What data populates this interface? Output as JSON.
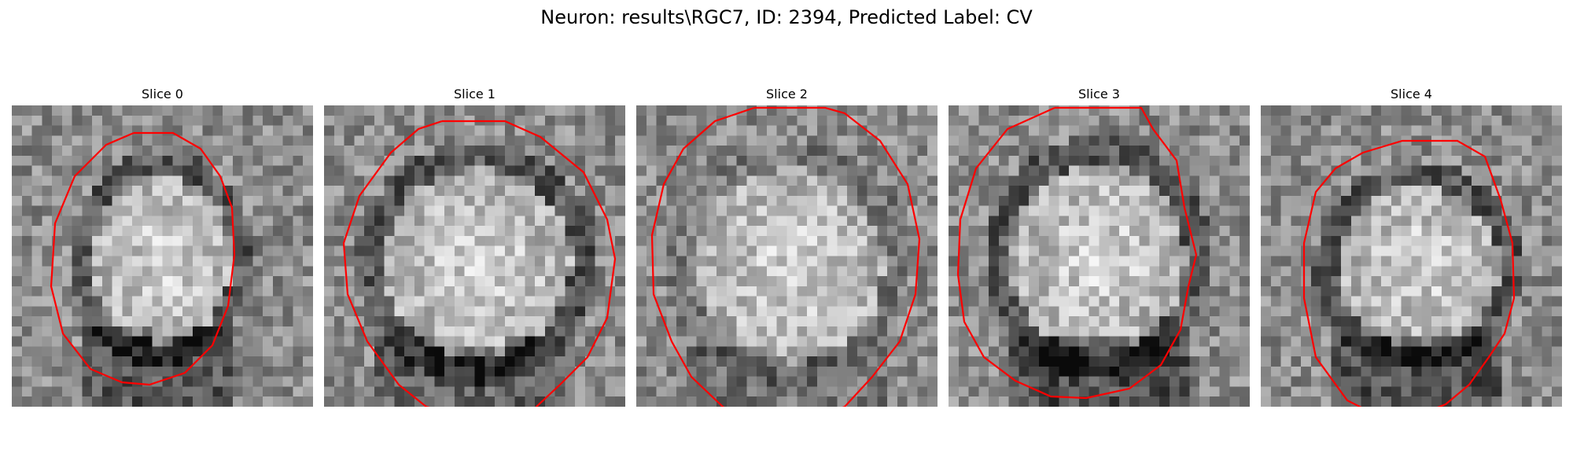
{
  "figure": {
    "title": "Neuron: results\\RGC7, ID: 2394, Predicted Label: CV"
  },
  "colors": {
    "contour": "#ff0000",
    "background": "#ffffff"
  },
  "panels": [
    {
      "title": "Slice 0"
    },
    {
      "title": "Slice 1"
    },
    {
      "title": "Slice 2"
    },
    {
      "title": "Slice 3"
    },
    {
      "title": "Slice 4"
    }
  ]
}
